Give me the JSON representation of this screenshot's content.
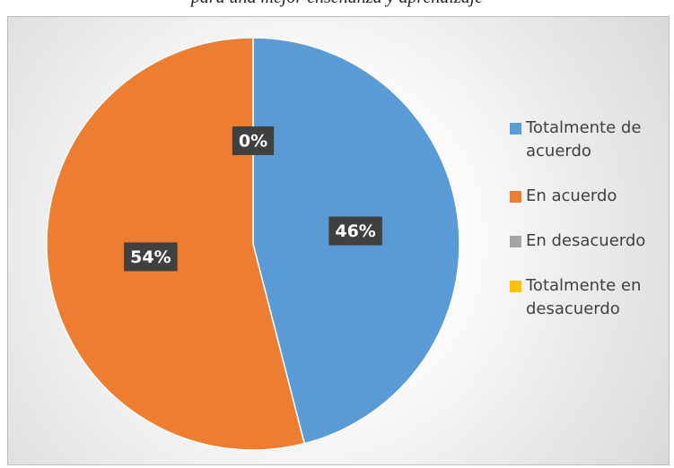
{
  "chart_data": {
    "type": "pie",
    "title": "para una mejor enseñanza y aprendizaje",
    "categories": [
      "Totalmente de acuerdo",
      "En acuerdo",
      "En desacuerdo",
      "Totalmente en desacuerdo"
    ],
    "values": [
      46,
      54,
      0,
      0
    ],
    "value_labels": [
      "46%",
      "54%",
      "0%",
      null
    ],
    "colors": [
      "#5b9bd5",
      "#ed7d31",
      "#a5a5a5",
      "#ffc000"
    ],
    "legend": "right"
  }
}
